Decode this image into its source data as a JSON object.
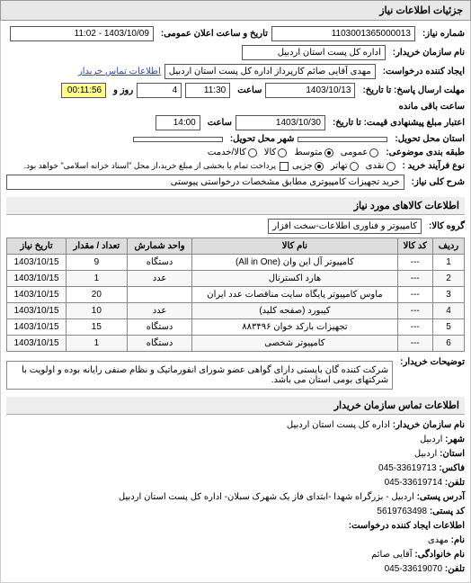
{
  "panels": {
    "need_info": "جزئیات اطلاعات نیاز"
  },
  "header": {
    "number_label": "شماره نیاز:",
    "number": "1103001365000013",
    "announce_label": "تاریخ و ساعت اعلان عمومی:",
    "announce": "1403/10/09 - 11:02",
    "buyer_org_label": "نام سازمان خریدار:",
    "buyer_org": "اداره کل پست استان اردبیل",
    "requester_label": "ایجاد کننده درخواست:",
    "requester": "مهدی آقایی صائم کارپرداز اداره کل پست استان اردبیل",
    "contact_link": "اطلاعات تماس خریدار",
    "reply_deadline_label": "مهلت ارسال پاسخ: تا تاریخ:",
    "reply_date": "1403/10/13",
    "time_label": "ساعت",
    "reply_time": "11:30",
    "days_remaining": "4",
    "days_label": "روز و",
    "time_remaining": "00:11:56",
    "time_remaining_label": "ساعت باقی مانده",
    "quote_valid_label": "اعتبار مبلغ پیشنهادی قیمت: تا تاریخ:",
    "quote_date": "1403/10/30",
    "quote_time": "14:00",
    "delivery_city_label": "استان محل تحویل:",
    "delivery_city": "",
    "delivery_place_label": "شهر محل تحویل:",
    "delivery_place": "",
    "budget_row_label": "طبقه بندی موضوعی:",
    "budget_options": [
      "عمومی",
      "متوسط",
      "کالا",
      "کالا/خدمت"
    ],
    "budget_selected_index": 1,
    "payment_label": "نوع فرآیند خرید :",
    "payment_options": [
      "نقدی",
      "تهاتر",
      "جزیی"
    ],
    "payment_selected_index": 2,
    "payment_note": "پرداخت تمام یا بخشی از مبلغ خرید،از محل \"اسناد خزانه اسلامی\" خواهد بود.",
    "checkbox_label": "",
    "summary_label": "شرح کلی نیاز:",
    "summary": "خرید تجهیزات کامپیوتری مطابق مشخصات درخواستی پیوستی"
  },
  "goods": {
    "section_title": "اطلاعات کالاهای مورد نیاز",
    "group_label": "گروه کالا:",
    "group": "کامپیوتر و فناوری اطلاعات-سخت افزار",
    "columns": [
      "ردیف",
      "کد کالا",
      "نام کالا",
      "واحد شمارش",
      "تعداد / مقدار",
      "تاریخ نیاز"
    ],
    "rows": [
      [
        "1",
        "---",
        "کامپیوتر آل این وان (All in One)",
        "دستگاه",
        "9",
        "1403/10/15"
      ],
      [
        "2",
        "---",
        "هارد اکسترنال",
        "عدد",
        "1",
        "1403/10/15"
      ],
      [
        "3",
        "---",
        "ماوس کامپیوتر پایگاه سایت مناقصات عدد ایران",
        "",
        "20",
        "1403/10/15"
      ],
      [
        "4",
        "---",
        "کیبورد (صفحه کلید)",
        "عدد",
        "10",
        "1403/10/15"
      ],
      [
        "5",
        "---",
        "تجهیزات بارکد خوان ۸۸۳۴۹۶",
        "دستگاه",
        "15",
        "1403/10/15"
      ],
      [
        "6",
        "---",
        "کامپیوتر شخصی",
        "دستگاه",
        "1",
        "1403/10/15"
      ]
    ],
    "note_label": "توضیحات خریدار:",
    "note": "شرکت کننده گان بایستی دارای گواهی عضو شورای انفورماتیک و نظام صنفی رایانه بوده و اولویت با شرکتهای بومی استان می باشد."
  },
  "contact": {
    "section_title": "اطلاعات تماس سازمان خریدار",
    "org_label": "نام سازمان خریدار:",
    "org": "اداره کل پست استان اردبیل",
    "city_label": "شهر:",
    "city": "اردبیل",
    "province_label": "استان:",
    "province": "اردبیل",
    "fax_label": "فاکس:",
    "fax": "33619713-045",
    "phone_label": "تلفن:",
    "phone": "33619714-045",
    "address_label": "آدرس پستی:",
    "address": "اردبیل - بزرگراه شهدا -ابتدای فاز یک شهرک سبلان- اداره کل پست استان اردبیل",
    "postal_label": "کد پستی:",
    "postal": "5619763498",
    "creator_section": "اطلاعات ایجاد کننده درخواست:",
    "name_label": "نام:",
    "name": "مهدی",
    "family_label": "نام خانوادگی:",
    "family": "آقایی صائم",
    "tel_label": "تلفن:",
    "tel": "33619070-045"
  }
}
